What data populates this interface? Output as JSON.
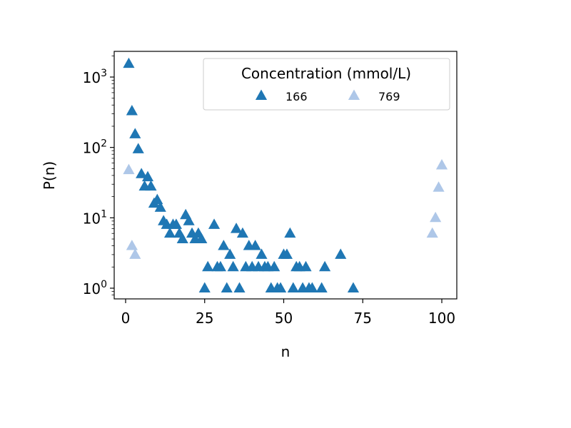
{
  "chart_data": {
    "type": "scatter",
    "xlabel": "n",
    "ylabel": "P(n)",
    "xlim": [
      -4,
      105
    ],
    "ylim": [
      0.7,
      2300
    ],
    "yscale": "log",
    "xticks": [
      0,
      25,
      50,
      75,
      100
    ],
    "yticks": [
      {
        "value": 1,
        "base": "10",
        "exp": "0"
      },
      {
        "value": 10,
        "base": "10",
        "exp": "1"
      },
      {
        "value": 100,
        "base": "10",
        "exp": "2"
      },
      {
        "value": 1000,
        "base": "10",
        "exp": "3"
      }
    ],
    "legend": {
      "title": "Concentration (mmol/L)",
      "position": "upper right",
      "ncol": 2
    },
    "grid": false,
    "marker": "triangle-up",
    "series": [
      {
        "name": "166",
        "color": "#1f77b4",
        "points": [
          [
            1,
            1550
          ],
          [
            2,
            330
          ],
          [
            3,
            155
          ],
          [
            4,
            95
          ],
          [
            5,
            42
          ],
          [
            6,
            28
          ],
          [
            7,
            38
          ],
          [
            8,
            28
          ],
          [
            9,
            16
          ],
          [
            10,
            18
          ],
          [
            11,
            14
          ],
          [
            12,
            9
          ],
          [
            13,
            8
          ],
          [
            14,
            6
          ],
          [
            15,
            8
          ],
          [
            16,
            8
          ],
          [
            17,
            6
          ],
          [
            18,
            5
          ],
          [
            19,
            11
          ],
          [
            20,
            9
          ],
          [
            21,
            6
          ],
          [
            22,
            5
          ],
          [
            23,
            6
          ],
          [
            24,
            5
          ],
          [
            25,
            1
          ],
          [
            26,
            2
          ],
          [
            28,
            8
          ],
          [
            29,
            2
          ],
          [
            30,
            2
          ],
          [
            31,
            4
          ],
          [
            32,
            1
          ],
          [
            33,
            3
          ],
          [
            34,
            2
          ],
          [
            35,
            7
          ],
          [
            36,
            1
          ],
          [
            37,
            6
          ],
          [
            38,
            2
          ],
          [
            39,
            4
          ],
          [
            40,
            2
          ],
          [
            41,
            4
          ],
          [
            42,
            2
          ],
          [
            43,
            3
          ],
          [
            44,
            2
          ],
          [
            45,
            2
          ],
          [
            46,
            1
          ],
          [
            47,
            2
          ],
          [
            48,
            1
          ],
          [
            49,
            1
          ],
          [
            50,
            3
          ],
          [
            51,
            3
          ],
          [
            52,
            6
          ],
          [
            53,
            1
          ],
          [
            54,
            2
          ],
          [
            55,
            2
          ],
          [
            56,
            1
          ],
          [
            57,
            2
          ],
          [
            58,
            1
          ],
          [
            59,
            1
          ],
          [
            62,
            1
          ],
          [
            63,
            2
          ],
          [
            68,
            3
          ],
          [
            72,
            1
          ]
        ]
      },
      {
        "name": "769",
        "color": "#aec7e8",
        "points": [
          [
            1,
            48
          ],
          [
            2,
            4
          ],
          [
            3,
            3
          ],
          [
            97,
            6
          ],
          [
            98,
            10
          ],
          [
            99,
            27
          ],
          [
            100,
            56
          ]
        ]
      }
    ]
  }
}
